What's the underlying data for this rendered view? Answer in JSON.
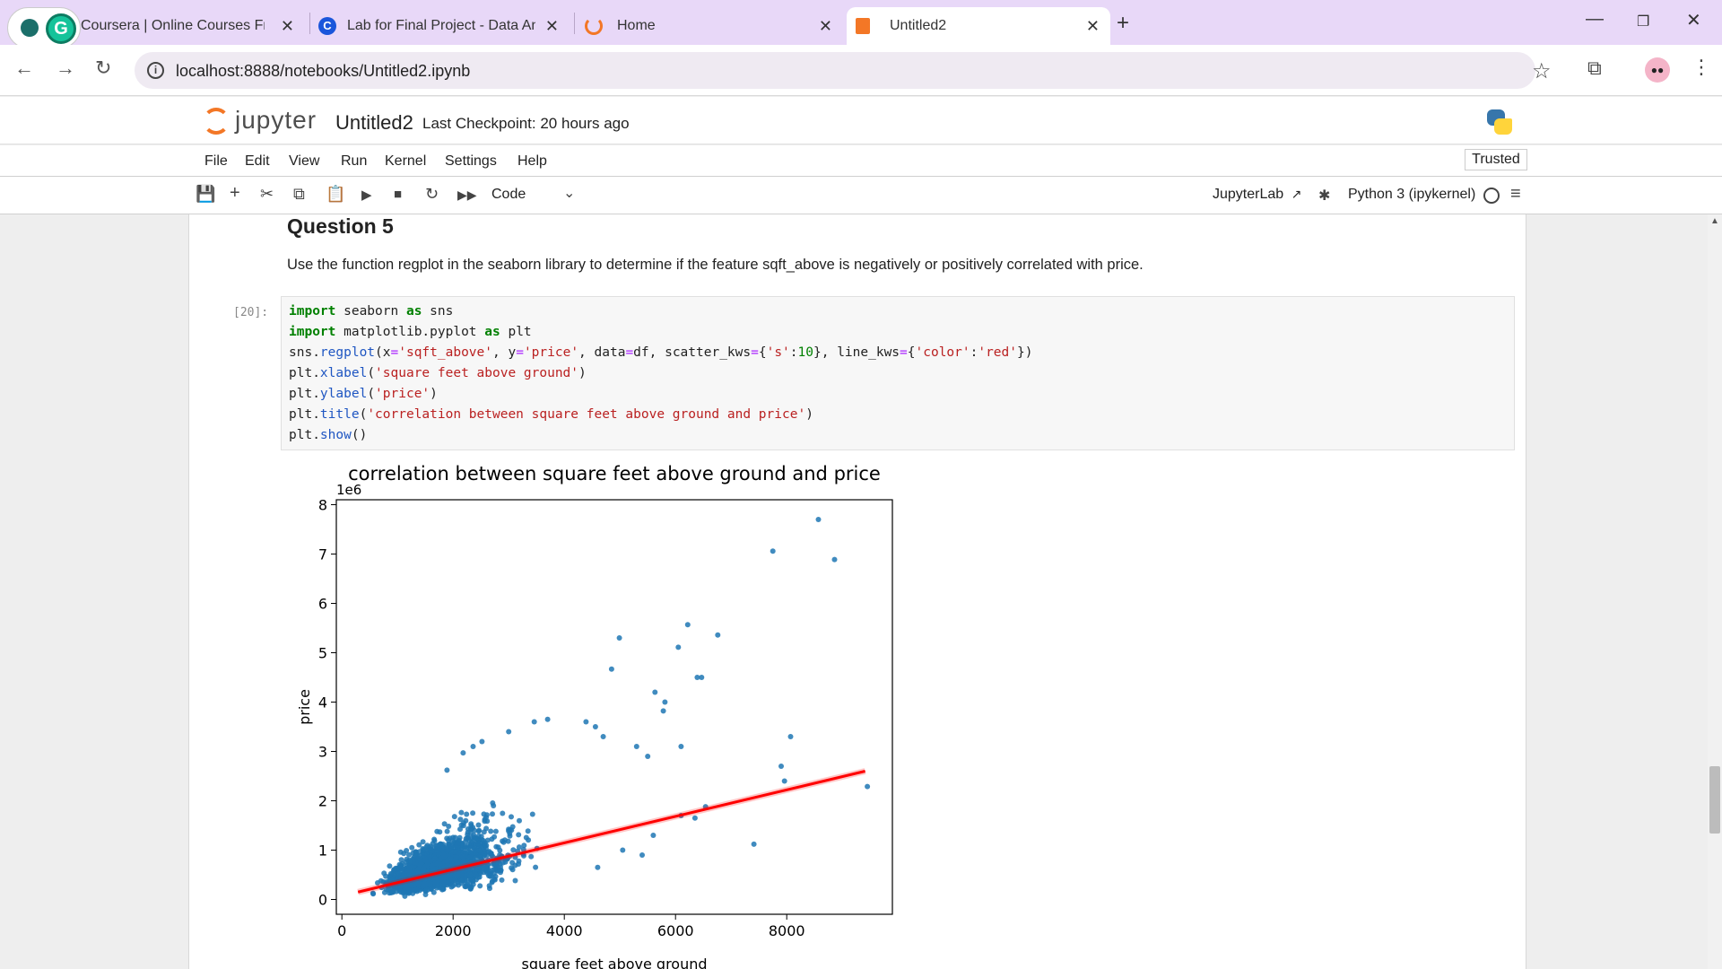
{
  "browser": {
    "tabs": [
      {
        "label": "Coursera | Online Courses From",
        "active": false
      },
      {
        "label": "Lab for Final Project - Data Ana",
        "active": false
      },
      {
        "label": "Home",
        "active": false
      },
      {
        "label": "Untitled2",
        "active": true
      }
    ],
    "new_tab_symbol": "+",
    "url": "localhost:8888/notebooks/Untitled2.ipynb"
  },
  "jupyter": {
    "logo_text": "jupyter",
    "notebook_name": "Untitled2",
    "checkpoint": "Last Checkpoint: 20 hours ago",
    "trusted": "Trusted",
    "menu": [
      "File",
      "Edit",
      "View",
      "Run",
      "Kernel",
      "Settings",
      "Help"
    ],
    "cell_type": "Code",
    "jupyterlab_link": "JupyterLab",
    "kernel": "Python 3 (ipykernel)"
  },
  "notebook": {
    "heading": "Question 5",
    "description": "Use the function regplot in the seaborn library to determine if the feature sqft_above is negatively or positively correlated with price.",
    "prompt": "[20]:"
  },
  "chart_data": {
    "type": "scatter",
    "title": "correlation between square feet above ground and price",
    "xlabel": "square feet above ground",
    "ylabel": "price",
    "y_offset_label": "1e6",
    "xlim": [
      -100,
      9900
    ],
    "ylim": [
      -0.3,
      8.1
    ],
    "xticks": [
      0,
      2000,
      4000,
      6000,
      8000
    ],
    "xtick_labels": [
      "0",
      "2000",
      "4000",
      "6000",
      "8000"
    ],
    "yticks": [
      0,
      1,
      2,
      3,
      4,
      5,
      6,
      7,
      8
    ],
    "ytick_labels": [
      "0",
      "1",
      "2",
      "3",
      "4",
      "5",
      "6",
      "7",
      "8"
    ],
    "point_color": "#1f77b4",
    "line_color": "#ff0000",
    "regression_line": {
      "x": [
        290,
        9410
      ],
      "y": [
        0.15,
        2.6
      ]
    },
    "outliers": [
      {
        "x": 8570,
        "y": 7.7
      },
      {
        "x": 7750,
        "y": 7.06
      },
      {
        "x": 8860,
        "y": 6.89
      },
      {
        "x": 6220,
        "y": 5.57
      },
      {
        "x": 6760,
        "y": 5.36
      },
      {
        "x": 4990,
        "y": 5.3
      },
      {
        "x": 6050,
        "y": 5.11
      },
      {
        "x": 4850,
        "y": 4.67
      },
      {
        "x": 6390,
        "y": 4.5
      },
      {
        "x": 6470,
        "y": 4.5
      },
      {
        "x": 5630,
        "y": 4.2
      },
      {
        "x": 5810,
        "y": 4.0
      },
      {
        "x": 5780,
        "y": 3.82
      },
      {
        "x": 8070,
        "y": 3.3
      },
      {
        "x": 6100,
        "y": 3.1
      },
      {
        "x": 7900,
        "y": 2.7
      },
      {
        "x": 7960,
        "y": 2.4
      },
      {
        "x": 9450,
        "y": 2.29
      },
      {
        "x": 6540,
        "y": 1.88
      },
      {
        "x": 7410,
        "y": 1.12
      },
      {
        "x": 6100,
        "y": 1.7
      },
      {
        "x": 6350,
        "y": 1.65
      },
      {
        "x": 3460,
        "y": 3.6
      },
      {
        "x": 3700,
        "y": 3.65
      },
      {
        "x": 3000,
        "y": 3.4
      },
      {
        "x": 2520,
        "y": 3.2
      },
      {
        "x": 2360,
        "y": 3.1
      },
      {
        "x": 2180,
        "y": 2.97
      },
      {
        "x": 1890,
        "y": 2.62
      },
      {
        "x": 4390,
        "y": 3.6
      },
      {
        "x": 4560,
        "y": 3.5
      },
      {
        "x": 4700,
        "y": 3.3
      },
      {
        "x": 5300,
        "y": 3.1
      },
      {
        "x": 5500,
        "y": 2.9
      },
      {
        "x": 5050,
        "y": 1.0
      },
      {
        "x": 4600,
        "y": 0.65
      },
      {
        "x": 5400,
        "y": 0.9
      },
      {
        "x": 5600,
        "y": 1.3
      }
    ],
    "cluster_density_model": {
      "n_points": 1900,
      "x_mode": 1500,
      "x_spread": 700,
      "slope_per_1000": 0.28
    }
  }
}
